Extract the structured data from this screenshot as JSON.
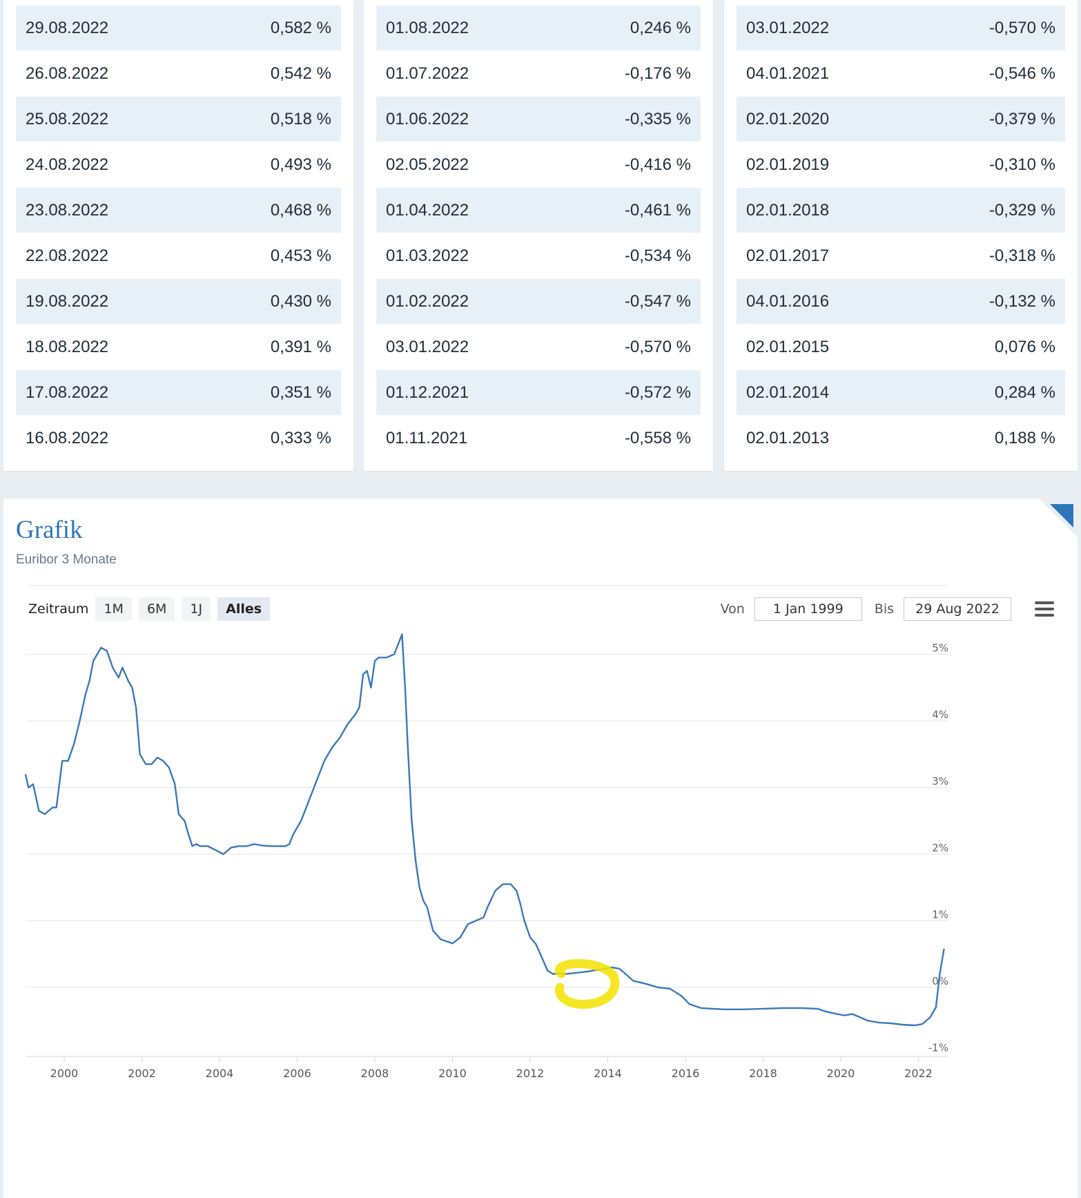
{
  "tables": [
    {
      "rows": [
        {
          "date": "29.08.2022",
          "value": "0,582 %"
        },
        {
          "date": "26.08.2022",
          "value": "0,542 %"
        },
        {
          "date": "25.08.2022",
          "value": "0,518 %"
        },
        {
          "date": "24.08.2022",
          "value": "0,493 %"
        },
        {
          "date": "23.08.2022",
          "value": "0,468 %"
        },
        {
          "date": "22.08.2022",
          "value": "0,453 %"
        },
        {
          "date": "19.08.2022",
          "value": "0,430 %"
        },
        {
          "date": "18.08.2022",
          "value": "0,391 %"
        },
        {
          "date": "17.08.2022",
          "value": "0,351 %"
        },
        {
          "date": "16.08.2022",
          "value": "0,333 %"
        }
      ]
    },
    {
      "rows": [
        {
          "date": "01.08.2022",
          "value": "0,246 %"
        },
        {
          "date": "01.07.2022",
          "value": "-0,176 %"
        },
        {
          "date": "01.06.2022",
          "value": "-0,335 %"
        },
        {
          "date": "02.05.2022",
          "value": "-0,416 %"
        },
        {
          "date": "01.04.2022",
          "value": "-0,461 %"
        },
        {
          "date": "01.03.2022",
          "value": "-0,534 %"
        },
        {
          "date": "01.02.2022",
          "value": "-0,547 %"
        },
        {
          "date": "03.01.2022",
          "value": "-0,570 %"
        },
        {
          "date": "01.12.2021",
          "value": "-0,572 %"
        },
        {
          "date": "01.11.2021",
          "value": "-0,558 %"
        }
      ]
    },
    {
      "rows": [
        {
          "date": "03.01.2022",
          "value": "-0,570 %"
        },
        {
          "date": "04.01.2021",
          "value": "-0,546 %"
        },
        {
          "date": "02.01.2020",
          "value": "-0,379 %"
        },
        {
          "date": "02.01.2019",
          "value": "-0,310 %"
        },
        {
          "date": "02.01.2018",
          "value": "-0,329 %"
        },
        {
          "date": "02.01.2017",
          "value": "-0,318 %"
        },
        {
          "date": "04.01.2016",
          "value": "-0,132 %"
        },
        {
          "date": "02.01.2015",
          "value": "0,076 %"
        },
        {
          "date": "02.01.2014",
          "value": "0,284 %"
        },
        {
          "date": "02.01.2013",
          "value": "0,188 %"
        }
      ]
    }
  ],
  "chart_section": {
    "title": "Grafik",
    "subtitle": "Euribor 3 Monate",
    "range_label": "Zeitraum",
    "range_buttons": [
      "1M",
      "6M",
      "1J",
      "Alles"
    ],
    "active_range": "Alles",
    "from_label": "Von",
    "from_value": "1 Jan 1999",
    "to_label": "Bis",
    "to_value": "29 Aug 2022"
  },
  "colors": {
    "line": "#3a78b9",
    "accent": "#2f75bb",
    "highlight": "#f5e300",
    "grid": "#e6e6e6"
  },
  "chart_data": {
    "type": "line",
    "title": "",
    "xlabel": "",
    "ylabel": "",
    "x_ticks": [
      "2000",
      "2002",
      "2004",
      "2006",
      "2008",
      "2010",
      "2012",
      "2014",
      "2016",
      "2018",
      "2020",
      "2022"
    ],
    "y_ticks": [
      "5%",
      "4%",
      "3%",
      "2%",
      "1%",
      "0%",
      "-1%"
    ],
    "xlim": [
      1999.0,
      2022.66
    ],
    "ylim": [
      -1,
      5.5
    ],
    "grid": true,
    "series": [
      {
        "x": [
          1999.0,
          1999.08,
          1999.2,
          1999.35,
          1999.5,
          1999.7,
          1999.8,
          1999.95,
          2000.1,
          2000.25,
          2000.4,
          2000.55,
          2000.65,
          2000.75,
          2000.85,
          2000.95,
          2001.1,
          2001.25,
          2001.4,
          2001.5,
          2001.65,
          2001.75,
          2001.85,
          2001.95,
          2002.1,
          2002.25,
          2002.4,
          2002.55,
          2002.7,
          2002.85,
          2002.95,
          2003.1,
          2003.2,
          2003.3,
          2003.4,
          2003.5,
          2003.7,
          2003.9,
          2004.1,
          2004.3,
          2004.5,
          2004.7,
          2004.9,
          2005.1,
          2005.3,
          2005.5,
          2005.7,
          2005.8,
          2005.9,
          2006.1,
          2006.3,
          2006.5,
          2006.7,
          2006.9,
          2007.1,
          2007.3,
          2007.5,
          2007.6,
          2007.7,
          2007.8,
          2007.9,
          2008.0,
          2008.1,
          2008.2,
          2008.3,
          2008.5,
          2008.7,
          2008.78,
          2008.85,
          2008.95,
          2009.05,
          2009.15,
          2009.25,
          2009.35,
          2009.5,
          2009.7,
          2010.0,
          2010.2,
          2010.4,
          2010.6,
          2010.8,
          2010.9,
          2011.1,
          2011.3,
          2011.5,
          2011.65,
          2011.75,
          2011.85,
          2012.0,
          2012.15,
          2012.3,
          2012.45,
          2012.6,
          2012.75,
          2012.9,
          2013.2,
          2013.5,
          2013.8,
          2014.1,
          2014.3,
          2014.5,
          2014.65,
          2014.8,
          2015.0,
          2015.3,
          2015.6,
          2015.9,
          2016.1,
          2016.4,
          2016.7,
          2017.0,
          2017.5,
          2018.0,
          2018.5,
          2019.0,
          2019.4,
          2019.6,
          2019.9,
          2020.1,
          2020.3,
          2020.5,
          2020.7,
          2021.0,
          2021.3,
          2021.6,
          2021.9,
          2022.1,
          2022.3,
          2022.45,
          2022.55,
          2022.66
        ],
        "y": [
          3.2,
          3.0,
          3.05,
          2.65,
          2.6,
          2.7,
          2.7,
          3.4,
          3.4,
          3.65,
          4.0,
          4.4,
          4.6,
          4.9,
          5.0,
          5.1,
          5.05,
          4.8,
          4.65,
          4.8,
          4.6,
          4.5,
          4.2,
          3.5,
          3.35,
          3.35,
          3.45,
          3.4,
          3.3,
          3.05,
          2.6,
          2.5,
          2.3,
          2.12,
          2.15,
          2.12,
          2.12,
          2.06,
          2.0,
          2.1,
          2.12,
          2.12,
          2.15,
          2.13,
          2.12,
          2.12,
          2.12,
          2.15,
          2.3,
          2.5,
          2.8,
          3.1,
          3.4,
          3.6,
          3.75,
          3.95,
          4.1,
          4.2,
          4.7,
          4.75,
          4.5,
          4.9,
          4.95,
          4.95,
          4.95,
          5.0,
          5.3,
          4.5,
          3.6,
          2.5,
          1.9,
          1.5,
          1.3,
          1.2,
          0.85,
          0.72,
          0.66,
          0.75,
          0.95,
          1.0,
          1.05,
          1.2,
          1.45,
          1.55,
          1.55,
          1.45,
          1.25,
          1.0,
          0.75,
          0.65,
          0.45,
          0.25,
          0.2,
          0.21,
          0.2,
          0.22,
          0.24,
          0.27,
          0.3,
          0.28,
          0.18,
          0.1,
          0.08,
          0.05,
          0.0,
          -0.02,
          -0.13,
          -0.25,
          -0.31,
          -0.32,
          -0.33,
          -0.33,
          -0.32,
          -0.31,
          -0.31,
          -0.32,
          -0.36,
          -0.4,
          -0.42,
          -0.4,
          -0.45,
          -0.5,
          -0.53,
          -0.54,
          -0.56,
          -0.57,
          -0.55,
          -0.45,
          -0.3,
          0.2,
          0.58
        ]
      }
    ]
  }
}
